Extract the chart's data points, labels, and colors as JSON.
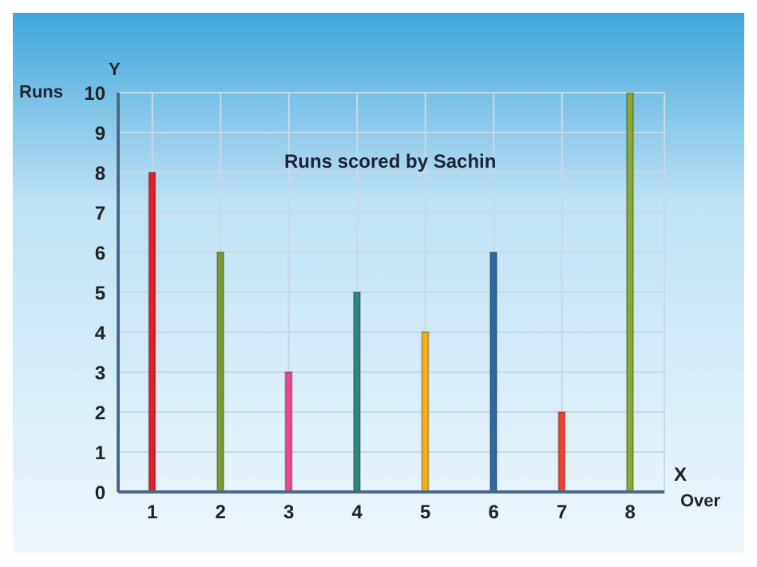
{
  "chart_data": {
    "type": "bar",
    "title": "Runs scored by Sachin",
    "xlabel": "Over",
    "ylabel": "Runs",
    "annotations": [
      "Y",
      "X"
    ],
    "categories": [
      "1",
      "2",
      "3",
      "4",
      "5",
      "6",
      "7",
      "8"
    ],
    "values": [
      8,
      6,
      3,
      5,
      4,
      6,
      2,
      10
    ],
    "colors": [
      "#e0202a",
      "#7a9a30",
      "#e84a8a",
      "#2a8a80",
      "#f8b010",
      "#2a68a8",
      "#f04030",
      "#8aaa30"
    ],
    "ylim": [
      0,
      10
    ],
    "yticks": [
      0,
      1,
      2,
      3,
      4,
      5,
      6,
      7,
      8,
      9,
      10
    ],
    "grid": true
  }
}
